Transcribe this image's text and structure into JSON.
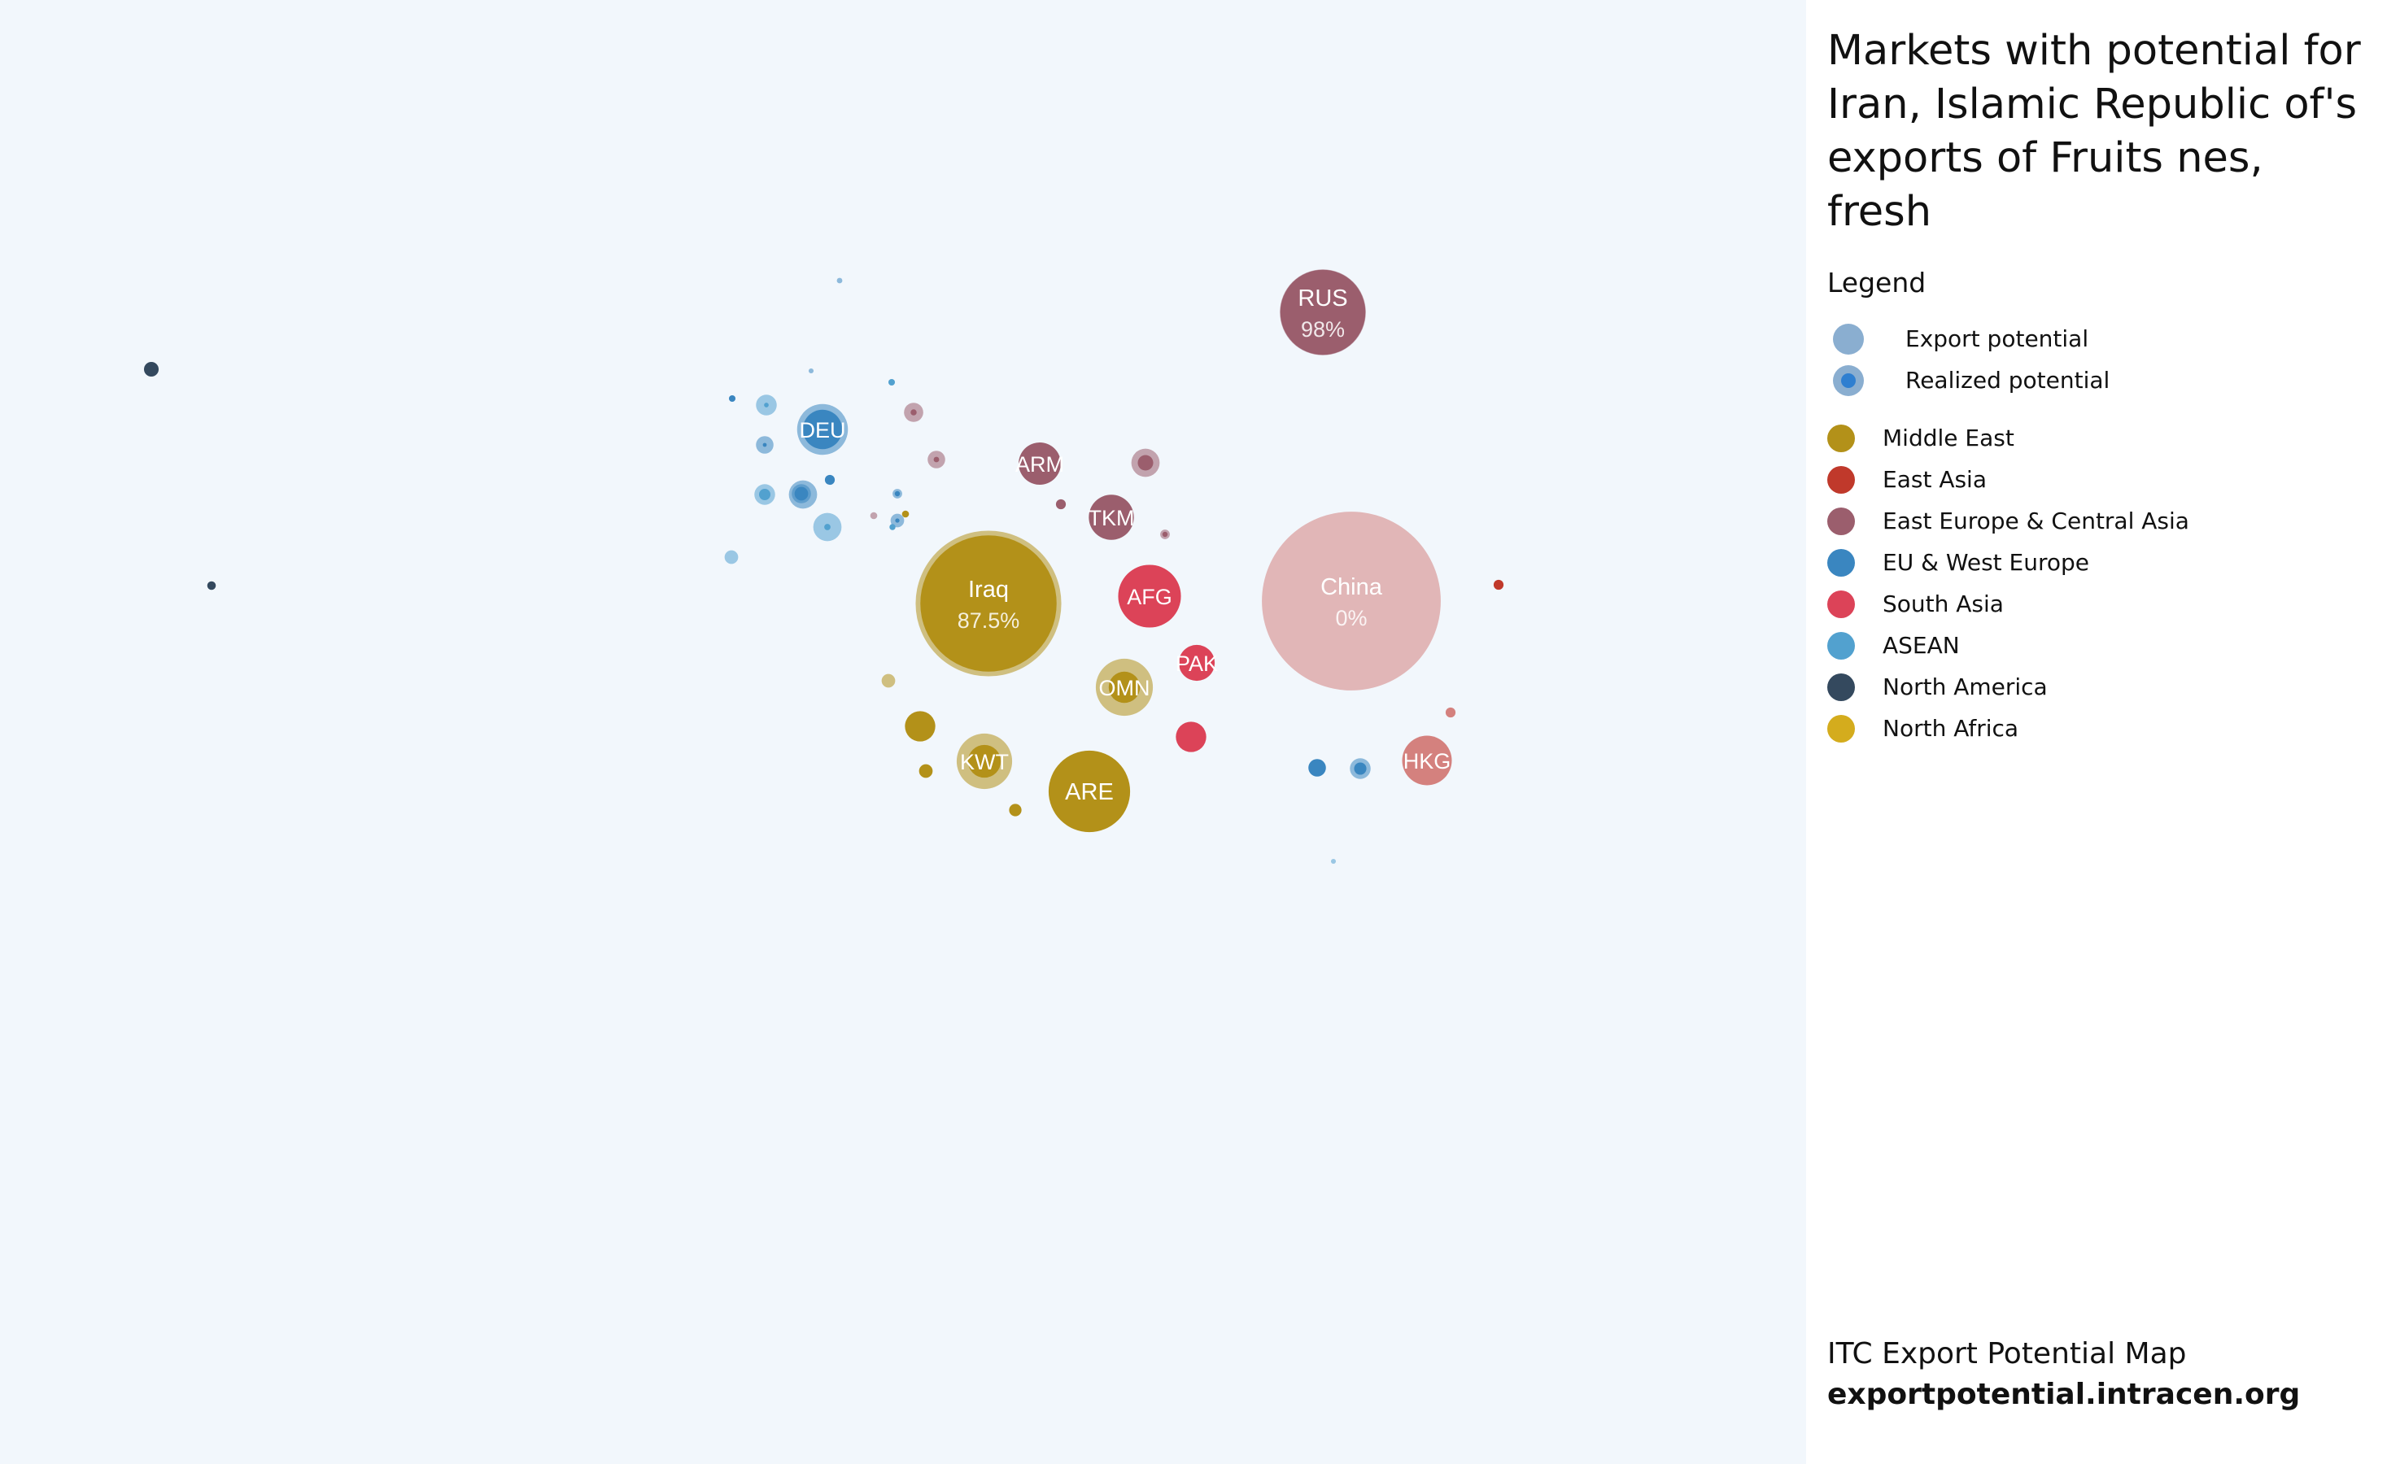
{
  "title": "Markets with potential for Iran, Islamic Republic of's exports of Fruits nes, fresh",
  "legend": {
    "heading": "Legend",
    "potential": [
      {
        "label": "Export potential",
        "icon": "export-potential-icon"
      },
      {
        "label": "Realized potential",
        "icon": "realized-potential-icon"
      }
    ],
    "regions": [
      {
        "label": "Middle East",
        "color": "#b39119"
      },
      {
        "label": "East Asia",
        "color": "#c0392b"
      },
      {
        "label": "East Europe & Central Asia",
        "color": "#9b5e6d"
      },
      {
        "label": "EU & West Europe",
        "color": "#3a86c0"
      },
      {
        "label": "South Asia",
        "color": "#dc4358"
      },
      {
        "label": "ASEAN",
        "color": "#52a1cf"
      },
      {
        "label": "North America",
        "color": "#34495e"
      },
      {
        "label": "North Africa",
        "color": "#d4ac1d"
      }
    ]
  },
  "footer": {
    "name": "ITC Export Potential Map",
    "url": "exportpotential.intracen.org"
  },
  "chart_data": {
    "type": "bubble",
    "size_measure": "relative export potential (area)",
    "markets": [
      {
        "label": "China",
        "percent": "0%",
        "region": "East Asia (light)",
        "color": "#d4817e",
        "potential": 5.2,
        "realized": 0
      },
      {
        "label": "Iraq",
        "percent": "87.5%",
        "region": "Middle East",
        "color": "#b39119",
        "potential": 3.45,
        "realized": 0.875
      },
      {
        "label": "RUS",
        "percent": "98%",
        "region": "East Europe & Central Asia",
        "color": "#9b5e6d",
        "potential": 1.2,
        "realized": 0.98
      },
      {
        "label": "ARE",
        "region": "Middle East",
        "color": "#b39119",
        "potential": 1.08,
        "realized": 1.0
      },
      {
        "label": "AFG",
        "region": "South Asia",
        "color": "#dc4358",
        "potential": 0.64,
        "realized": 1.0
      },
      {
        "label": "OMN",
        "region": "Middle East",
        "color": "#b39119",
        "potential": 0.53,
        "realized": 0.3
      },
      {
        "label": "HKG",
        "region": "East Asia (light)",
        "color": "#d4817e",
        "potential": 0.4,
        "realized": 1.0
      },
      {
        "label": "KWT",
        "region": "Middle East",
        "color": "#b39119",
        "potential": 0.5,
        "realized": 0.35
      },
      {
        "label": "DEU",
        "region": "EU & West Europe",
        "color": "#3a86c0",
        "potential": 0.42,
        "realized": 0.6
      },
      {
        "label": "TKM",
        "region": "East Europe & Central Asia",
        "color": "#9b5e6d",
        "potential": 0.33,
        "realized": 1.0
      },
      {
        "label": "ARM",
        "region": "East Europe & Central Asia",
        "color": "#9b5e6d",
        "potential": 0.29,
        "realized": 1.0
      },
      {
        "label": "PAK",
        "region": "South Asia",
        "color": "#dc4358",
        "potential": 0.21,
        "realized": 1.0
      },
      {
        "label": "",
        "region": "South Asia",
        "color": "#dc4358",
        "potential": 0.15,
        "realized": 1.0
      },
      {
        "label": "",
        "region": "Middle East",
        "color": "#b39119",
        "potential": 0.15,
        "realized": 1.0
      },
      {
        "label": "",
        "region": "ASEAN",
        "color": "#52a1cf",
        "potential": 0.13,
        "realized": 0.05
      },
      {
        "label": "",
        "region": "EU & West Europe",
        "color": "#3a86c0",
        "potential": 0.13,
        "realized": 0.1
      },
      {
        "label": "",
        "region": "East Europe & Central Asia",
        "color": "#9b5e6d",
        "potential": 0.13,
        "realized": 0.3
      },
      {
        "label": "",
        "region": "ASEAN",
        "color": "#52a1cf",
        "potential": 0.07,
        "realized": 0.05
      },
      {
        "label": "",
        "region": "ASEAN",
        "color": "#52a1cf",
        "potential": 0.07,
        "realized": 0.3
      },
      {
        "label": "",
        "region": "EU & West Europe",
        "color": "#3a86c0",
        "potential": 0.07,
        "realized": 0.35
      },
      {
        "label": "",
        "region": "EU & West Europe",
        "color": "#3a86c0",
        "potential": 0.06,
        "realized": 0.5
      },
      {
        "label": "",
        "region": "EU & West Europe",
        "color": "#3a86c0",
        "potential": 0.05,
        "realized": 0.05
      },
      {
        "label": "",
        "region": "East Europe & Central Asia",
        "color": "#9b5e6d",
        "potential": 0.06,
        "realized": 0.1
      },
      {
        "label": "",
        "region": "East Europe & Central Asia",
        "color": "#9b5e6d",
        "potential": 0.05,
        "realized": 0.1
      },
      {
        "label": "",
        "region": "EU & West Europe",
        "color": "#3a86c0",
        "potential": 0.05,
        "realized": 1.0
      },
      {
        "label": "",
        "region": "Middle East",
        "color": "#b39119",
        "potential": 0.03,
        "realized": 1.0
      },
      {
        "label": "",
        "region": "Middle East",
        "color": "#b39119",
        "potential": 0.025,
        "realized": 1.0
      },
      {
        "label": "",
        "region": "Middle East",
        "color": "#b39119",
        "potential": 0.03,
        "realized": 0.0
      },
      {
        "label": "",
        "region": "North America",
        "color": "#34495e",
        "potential": 0.035,
        "realized": 1.0
      },
      {
        "label": "",
        "region": "ASEAN",
        "color": "#52a1cf",
        "potential": 0.03,
        "realized": 0.0
      },
      {
        "label": "",
        "region": "EU & West Europe",
        "color": "#3a86c0",
        "potential": 0.03,
        "realized": 0.1
      },
      {
        "label": "",
        "region": "East Asia",
        "color": "#c0392b",
        "potential": 0.016,
        "realized": 1.0
      },
      {
        "label": "",
        "region": "East Europe & Central Asia",
        "color": "#9b5e6d",
        "potential": 0.016,
        "realized": 1.0
      },
      {
        "label": "",
        "region": "East Asia (light)",
        "color": "#d4817e",
        "potential": 0.016,
        "realized": 1.0
      },
      {
        "label": "",
        "region": "EU & West Europe",
        "color": "#3a86c0",
        "potential": 0.016,
        "realized": 1.0
      },
      {
        "label": "",
        "region": "East Europe & Central Asia",
        "color": "#9b5e6d",
        "potential": 0.015,
        "realized": 0.3
      },
      {
        "label": "",
        "region": "EU & West Europe",
        "color": "#3a86c0",
        "potential": 0.015,
        "realized": 0.3
      },
      {
        "label": "",
        "region": "North America",
        "color": "#34495e",
        "potential": 0.012,
        "realized": 1.0
      },
      {
        "label": "",
        "region": "Middle East",
        "color": "#b39119",
        "potential": 0.008,
        "realized": 1.0
      },
      {
        "label": "",
        "region": "East Europe & Central Asia",
        "color": "#9b5e6d",
        "potential": 0.008,
        "realized": 0.0
      },
      {
        "label": "",
        "region": "EU & West Europe",
        "color": "#3a86c0",
        "potential": 0.007,
        "realized": 1.0
      },
      {
        "label": "",
        "region": "ASEAN",
        "color": "#52a1cf",
        "potential": 0.007,
        "realized": 1.0
      },
      {
        "label": "",
        "region": "ASEAN",
        "color": "#52a1cf",
        "potential": 0.006,
        "realized": 1.0
      },
      {
        "label": "",
        "region": "EU & West Europe",
        "color": "#3a86c0",
        "potential": 0.005,
        "realized": 0.0
      },
      {
        "label": "",
        "region": "ASEAN",
        "color": "#52a1cf",
        "potential": 0.004,
        "realized": 0.0
      },
      {
        "label": "",
        "region": "EU & West Europe",
        "color": "#3a86c0",
        "potential": 0.004,
        "realized": 0.0
      }
    ]
  }
}
